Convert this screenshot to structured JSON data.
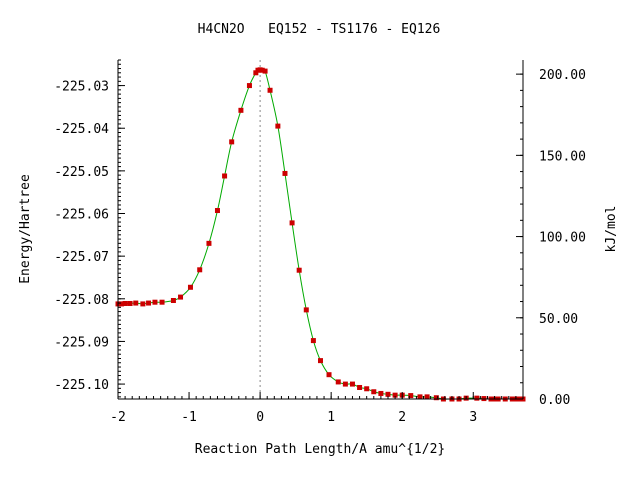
{
  "chart_data": {
    "type": "line",
    "title": "H4CN2O   EQ152 - TS1176 - EQ126",
    "xlabel": "Reaction Path Length/A amu^{1/2}",
    "ylabel": "Energy/Hartree",
    "y2label": "kJ/mol",
    "xlim": [
      -2.0,
      3.7
    ],
    "ylim": [
      -225.1035,
      -225.024
    ],
    "y2lim": [
      0.0,
      208.7
    ],
    "x_ticks": [
      "-2",
      "-1",
      "0",
      "1",
      "2",
      "3"
    ],
    "y_ticks": [
      "-225.03",
      "-225.04",
      "-225.05",
      "-225.06",
      "-225.07",
      "-225.08",
      "-225.09",
      "-225.10"
    ],
    "y2_ticks": [
      "0.00",
      "50.00",
      "100.00",
      "150.00",
      "200.00"
    ],
    "ts_marker_x": 0.0,
    "colors": {
      "curve": "#00aa00",
      "points": "#cc0000",
      "marker_line": "#888888",
      "axis": "#000000"
    },
    "series": [
      {
        "x": [
          -2.0,
          -1.95,
          -1.9,
          -1.83,
          -1.75,
          -1.65,
          -1.57,
          -1.48,
          -1.38,
          -1.22,
          -1.12,
          -0.98,
          -0.85,
          -0.72,
          -0.6,
          -0.5,
          -0.4,
          -0.27,
          -0.15,
          -0.06,
          -0.03,
          0.0,
          0.03,
          0.07,
          0.14,
          0.25,
          0.35,
          0.45,
          0.55,
          0.65,
          0.75,
          0.85,
          0.97,
          1.1,
          1.2,
          1.3,
          1.4,
          1.5,
          1.6,
          1.7,
          1.8,
          1.9,
          2.0,
          2.12,
          2.25,
          2.35,
          2.48,
          2.58,
          2.7,
          2.8,
          2.9,
          3.05,
          3.15,
          3.25,
          3.3,
          3.35,
          3.45,
          3.55,
          3.6,
          3.65,
          3.7
        ],
        "y": [
          -225.0812,
          -225.0812,
          -225.0811,
          -225.0811,
          -225.081,
          -225.0812,
          -225.081,
          -225.0808,
          -225.0808,
          -225.0804,
          -225.0796,
          -225.0773,
          -225.0732,
          -225.067,
          -225.0593,
          -225.0512,
          -225.0432,
          -225.0358,
          -225.03,
          -225.027,
          -225.0264,
          -225.0263,
          -225.0264,
          -225.0266,
          -225.0311,
          -225.0395,
          -225.0506,
          -225.0622,
          -225.0733,
          -225.0826,
          -225.0898,
          -225.0945,
          -225.0978,
          -225.0995,
          -225.1,
          -225.1,
          -225.1008,
          -225.1011,
          -225.1018,
          -225.1022,
          -225.1024,
          -225.1026,
          -225.1026,
          -225.1027,
          -225.103,
          -225.103,
          -225.1032,
          -225.1035,
          -225.1035,
          -225.1035,
          -225.1033,
          -225.1033,
          -225.1034,
          -225.1035,
          -225.1035,
          -225.1035,
          -225.1035,
          -225.1035,
          -225.1035,
          -225.1035,
          -225.1035
        ]
      }
    ]
  }
}
